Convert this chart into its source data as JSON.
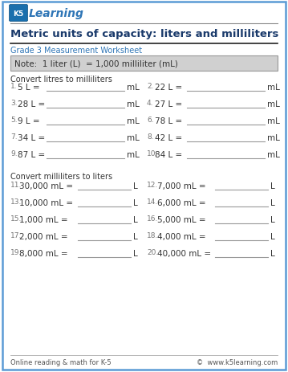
{
  "title": "Metric units of capacity: liters and milliliters",
  "subtitle": "Grade 3 Measurement Worksheet",
  "note": "Note:  1 liter (L)  = 1,000 milliliter (mL)",
  "section1": "Convert litres to milliliters",
  "section2": "Convert milliliters to liters",
  "col1_problems": [
    {
      "num": "1.",
      "text": "5 L =",
      "unit": "mL"
    },
    {
      "num": "3.",
      "text": "28 L =",
      "unit": "mL"
    },
    {
      "num": "5.",
      "text": "9 L =",
      "unit": "mL"
    },
    {
      "num": "7.",
      "text": "34 L =",
      "unit": "mL"
    },
    {
      "num": "9.",
      "text": "87 L =",
      "unit": "mL"
    }
  ],
  "col2_problems": [
    {
      "num": "2.",
      "text": "22 L =",
      "unit": "mL"
    },
    {
      "num": "4.",
      "text": "27 L =",
      "unit": "mL"
    },
    {
      "num": "6.",
      "text": "78 L =",
      "unit": "mL"
    },
    {
      "num": "8.",
      "text": "42 L =",
      "unit": "mL"
    },
    {
      "num": "10.",
      "text": "84 L =",
      "unit": "mL"
    }
  ],
  "col3_problems": [
    {
      "num": "11.",
      "text": "30,000 mL =",
      "unit": "L"
    },
    {
      "num": "13.",
      "text": "10,000 mL =",
      "unit": "L"
    },
    {
      "num": "15.",
      "text": "1,000 mL =",
      "unit": "L"
    },
    {
      "num": "17.",
      "text": "2,000 mL =",
      "unit": "L"
    },
    {
      "num": "19.",
      "text": "8,000 mL =",
      "unit": "L"
    }
  ],
  "col4_problems": [
    {
      "num": "12.",
      "text": "7,000 mL =",
      "unit": "L"
    },
    {
      "num": "14.",
      "text": "6,000 mL =",
      "unit": "L"
    },
    {
      "num": "16.",
      "text": "5,000 mL =",
      "unit": "L"
    },
    {
      "num": "18.",
      "text": "4,000 mL =",
      "unit": "L"
    },
    {
      "num": "20.",
      "text": "40,000 mL =",
      "unit": "L"
    }
  ],
  "footer_left": "Online reading & math for K-5",
  "footer_right": "©  www.k5learning.com",
  "border_color": "#5b9bd5",
  "title_color": "#1a3a6b",
  "subtitle_color": "#2E75B6",
  "note_color": "#333333",
  "note_bg": "#d0d0d0",
  "section_color": "#333333",
  "problem_color": "#333333",
  "num_color": "#777777",
  "footer_color": "#555555",
  "line_color": "#999999",
  "bg_color": "#ffffff"
}
